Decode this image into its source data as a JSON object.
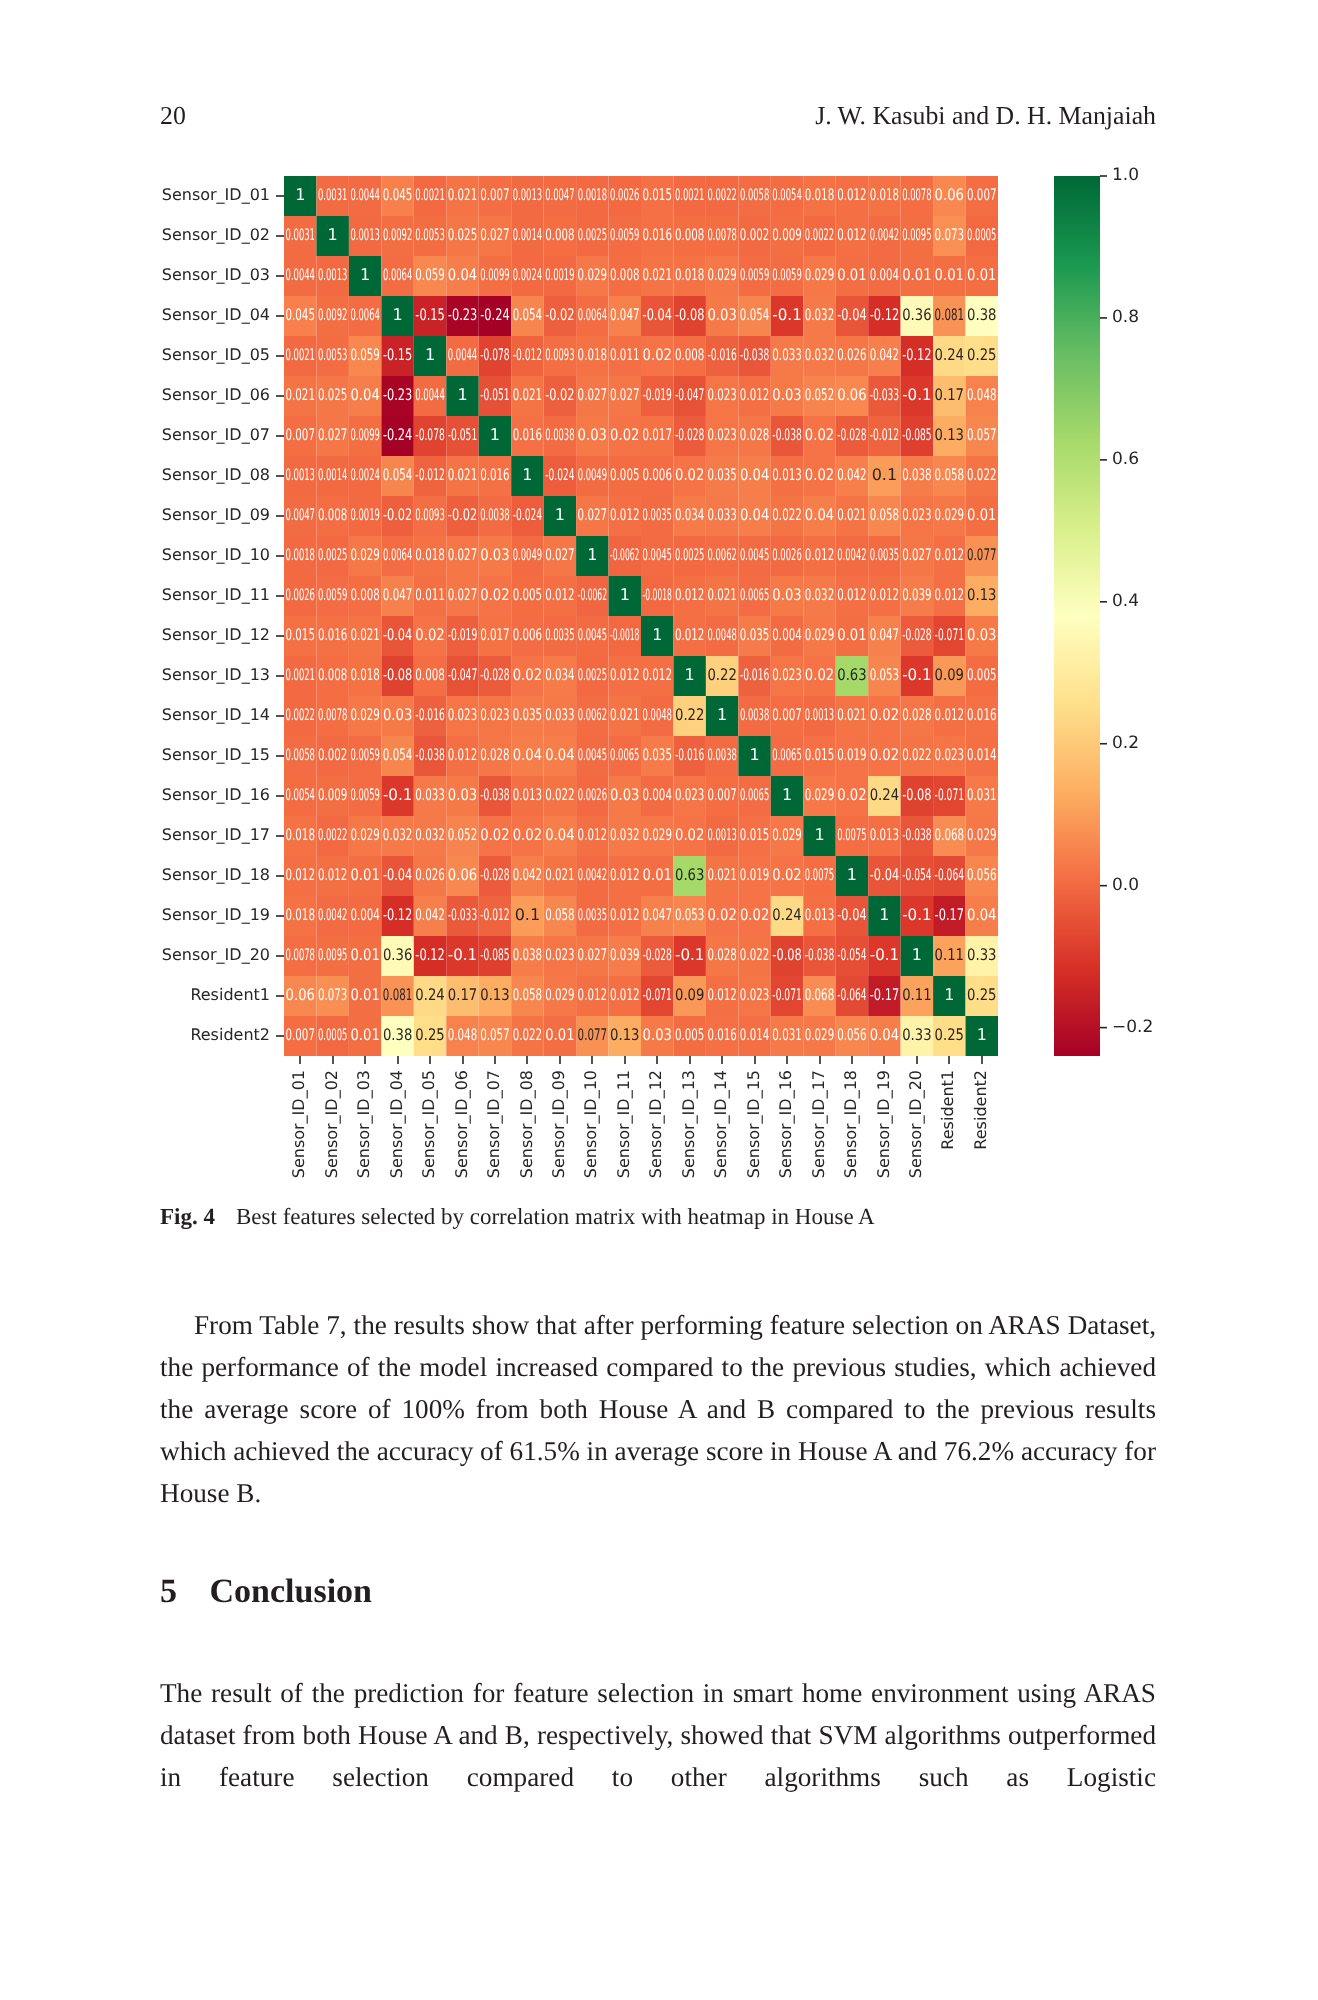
{
  "chart_data": {
    "type": "heatmap",
    "categories": [
      "Sensor_ID_01",
      "Sensor_ID_02",
      "Sensor_ID_03",
      "Sensor_ID_04",
      "Sensor_ID_05",
      "Sensor_ID_06",
      "Sensor_ID_07",
      "Sensor_ID_08",
      "Sensor_ID_09",
      "Sensor_ID_10",
      "Sensor_ID_11",
      "Sensor_ID_12",
      "Sensor_ID_13",
      "Sensor_ID_14",
      "Sensor_ID_15",
      "Sensor_ID_16",
      "Sensor_ID_17",
      "Sensor_ID_18",
      "Sensor_ID_19",
      "Sensor_ID_20",
      "Resident1",
      "Resident2"
    ],
    "y_categories": [
      "Sensor_ID_01",
      "Sensor_ID_02",
      "Sensor_ID_03",
      "Sensor_ID_04",
      "Sensor_ID_05",
      "Sensor_ID_06",
      "Sensor_ID_07",
      "Sensor_ID_08",
      "Sensor_ID_09",
      "Sensor_ID_10",
      "Sensor_ID_11",
      "Sensor_ID_12",
      "Sensor_ID_13",
      "Sensor_ID_14",
      "Sensor_ID_15",
      "Sensor_ID_16",
      "Sensor_ID_17",
      "Sensor_ID_18",
      "Sensor_ID_19",
      "Sensor_ID_20",
      "Resident1",
      "Resident2"
    ],
    "cells": [
      [
        1,
        0.0031,
        0.0044,
        0.045,
        0.0021,
        0.021,
        0.007,
        0.0013,
        0.0047,
        0.0018,
        0.0026,
        0.015,
        0.0021,
        0.0022,
        0.0058,
        0.0054,
        0.018,
        0.012,
        0.018,
        0.0078,
        0.06,
        0.007
      ],
      [
        0.0031,
        1,
        0.0013,
        0.0092,
        0.0053,
        0.025,
        0.027,
        0.0014,
        0.008,
        0.0025,
        0.0059,
        0.016,
        0.008,
        0.0078,
        0.002,
        0.009,
        0.0022,
        0.012,
        0.0042,
        0.0095,
        0.073,
        0.0005
      ],
      [
        0.0044,
        0.0013,
        1,
        0.0064,
        0.059,
        0.04,
        0.0099,
        0.0024,
        0.0019,
        0.029,
        0.008,
        0.021,
        0.018,
        0.029,
        0.0059,
        0.0059,
        0.029,
        0.01,
        0.004,
        0.01,
        0.01,
        0.01
      ],
      [
        0.045,
        0.0092,
        0.0064,
        1,
        -0.15,
        -0.23,
        -0.24,
        0.054,
        -0.02,
        0.0064,
        0.047,
        -0.04,
        -0.08,
        0.03,
        0.054,
        -0.1,
        0.032,
        -0.04,
        -0.12,
        0.36,
        0.081,
        0.38
      ],
      [
        0.0021,
        0.0053,
        0.059,
        -0.15,
        1,
        0.0044,
        -0.078,
        -0.012,
        0.0093,
        0.018,
        0.011,
        0.02,
        0.008,
        -0.016,
        -0.038,
        0.033,
        0.032,
        0.026,
        0.042,
        -0.12,
        0.24,
        0.25
      ],
      [
        0.021,
        0.025,
        0.04,
        -0.23,
        0.0044,
        1,
        -0.051,
        0.021,
        -0.02,
        0.027,
        0.027,
        -0.019,
        -0.047,
        0.023,
        0.012,
        0.03,
        0.052,
        0.06,
        -0.033,
        -0.1,
        0.17,
        0.048
      ],
      [
        0.007,
        0.027,
        0.0099,
        -0.24,
        -0.078,
        -0.051,
        1,
        0.016,
        0.0038,
        0.03,
        0.02,
        0.017,
        -0.028,
        0.023,
        0.028,
        -0.038,
        0.02,
        -0.028,
        -0.012,
        -0.085,
        0.13,
        0.057
      ],
      [
        0.0013,
        0.0014,
        0.0024,
        0.054,
        -0.012,
        0.021,
        0.016,
        1,
        -0.024,
        0.0049,
        0.005,
        0.006,
        0.02,
        0.035,
        0.04,
        0.013,
        0.02,
        0.042,
        0.1,
        0.038,
        0.058,
        0.022
      ],
      [
        0.0047,
        0.008,
        0.0019,
        -0.02,
        0.0093,
        -0.02,
        0.0038,
        -0.024,
        1,
        0.027,
        0.012,
        0.0035,
        0.034,
        0.033,
        0.04,
        0.022,
        0.04,
        0.021,
        0.058,
        0.023,
        0.029,
        0.01
      ],
      [
        0.0018,
        0.0025,
        0.029,
        0.0064,
        0.018,
        0.027,
        0.03,
        0.0049,
        0.027,
        1,
        -0.0062,
        0.0045,
        0.0025,
        0.0062,
        0.0045,
        0.0026,
        0.012,
        0.0042,
        0.0035,
        0.027,
        0.012,
        0.077
      ],
      [
        0.0026,
        0.0059,
        0.008,
        0.047,
        0.011,
        0.027,
        0.02,
        0.005,
        0.012,
        -0.0062,
        1,
        -0.0018,
        0.012,
        0.021,
        0.0065,
        0.03,
        0.032,
        0.012,
        0.012,
        0.039,
        0.012,
        0.13
      ],
      [
        0.015,
        0.016,
        0.021,
        -0.04,
        0.02,
        -0.019,
        0.017,
        0.006,
        0.0035,
        0.0045,
        -0.0018,
        1,
        0.012,
        0.0048,
        0.035,
        0.004,
        0.029,
        0.01,
        0.047,
        -0.028,
        -0.071,
        0.03
      ],
      [
        0.0021,
        0.008,
        0.018,
        -0.08,
        0.008,
        -0.047,
        -0.028,
        0.02,
        0.034,
        0.0025,
        0.012,
        0.012,
        1,
        0.22,
        -0.016,
        0.023,
        0.02,
        0.63,
        0.053,
        -0.1,
        0.09,
        0.005
      ],
      [
        0.0022,
        0.0078,
        0.029,
        0.03,
        -0.016,
        0.023,
        0.023,
        0.035,
        0.033,
        0.0062,
        0.021,
        0.0048,
        0.22,
        1,
        0.0038,
        0.007,
        0.0013,
        0.021,
        0.02,
        0.028,
        0.012,
        0.016
      ],
      [
        0.0058,
        0.002,
        0.0059,
        0.054,
        -0.038,
        0.012,
        0.028,
        0.04,
        0.04,
        0.0045,
        0.0065,
        0.035,
        -0.016,
        0.0038,
        1,
        0.0065,
        0.015,
        0.019,
        0.02,
        0.022,
        0.023,
        0.014
      ],
      [
        0.0054,
        0.009,
        0.0059,
        -0.1,
        0.033,
        0.03,
        -0.038,
        0.013,
        0.022,
        0.0026,
        0.03,
        0.004,
        0.023,
        0.007,
        0.0065,
        1,
        0.029,
        0.02,
        0.24,
        -0.08,
        -0.071,
        0.031
      ],
      [
        0.018,
        0.0022,
        0.029,
        0.032,
        0.032,
        0.052,
        0.02,
        0.02,
        0.04,
        0.012,
        0.032,
        0.029,
        0.02,
        0.0013,
        0.015,
        0.029,
        1,
        0.0075,
        0.013,
        -0.038,
        0.068,
        0.029
      ],
      [
        0.012,
        0.012,
        0.01,
        -0.04,
        0.026,
        0.06,
        -0.028,
        0.042,
        0.021,
        0.0042,
        0.012,
        0.01,
        0.63,
        0.021,
        0.019,
        0.02,
        0.0075,
        1,
        -0.04,
        -0.054,
        -0.064,
        0.056
      ],
      [
        0.018,
        0.0042,
        0.004,
        -0.12,
        0.042,
        -0.033,
        -0.012,
        0.1,
        0.058,
        0.0035,
        0.012,
        0.047,
        0.053,
        0.02,
        0.02,
        0.24,
        0.013,
        -0.04,
        1,
        -0.1,
        -0.17,
        0.04
      ],
      [
        0.0078,
        0.0095,
        0.01,
        0.36,
        -0.12,
        -0.1,
        -0.085,
        0.038,
        0.023,
        0.027,
        0.039,
        -0.028,
        -0.1,
        0.028,
        0.022,
        -0.08,
        -0.038,
        -0.054,
        -0.1,
        1,
        0.11,
        0.33
      ],
      [
        0.06,
        0.073,
        0.01,
        0.081,
        0.24,
        0.17,
        0.13,
        0.058,
        0.029,
        0.012,
        0.012,
        -0.071,
        0.09,
        0.012,
        0.023,
        -0.071,
        0.068,
        -0.064,
        -0.17,
        0.11,
        1,
        0.25
      ],
      [
        0.007,
        0.0005,
        0.01,
        0.38,
        0.25,
        0.048,
        0.057,
        0.022,
        0.01,
        0.077,
        0.13,
        0.03,
        0.005,
        0.016,
        0.014,
        0.031,
        0.029,
        0.056,
        0.04,
        0.33,
        0.25,
        1
      ]
    ],
    "data_labels": true,
    "clim": [
      -0.24,
      1
    ],
    "cticks": [
      {
        "value": -0.2,
        "label": "−0.2"
      },
      {
        "value": 0,
        "label": "0.0"
      },
      0.2,
      0.4,
      0.6,
      0.8,
      {
        "value": 1,
        "label": "1.0"
      }
    ],
    "annotations": [
      "20",
      "J. W. Kasubi and D. H. Manjaiah",
      "Fig. 4",
      "Best features selected by correlation matrix with heatmap in House A",
      "From Table 7, the results show that after performing feature selection on ARAS Dataset, the performance of the model increased compared to the previous studies, which achieved the average score of 100% from both House A and B compared to the previous results which achieved the accuracy of 61.5% in average score in House A and 76.2% accuracy for House B.",
      "5 Conclusion",
      "The result of the prediction for feature selection in smart home environment using ARAS dataset from both House A and B, respectively, showed that SVM algorithms outperformed in feature selection compared to other algorithms such as Logistic"
    ]
  }
}
